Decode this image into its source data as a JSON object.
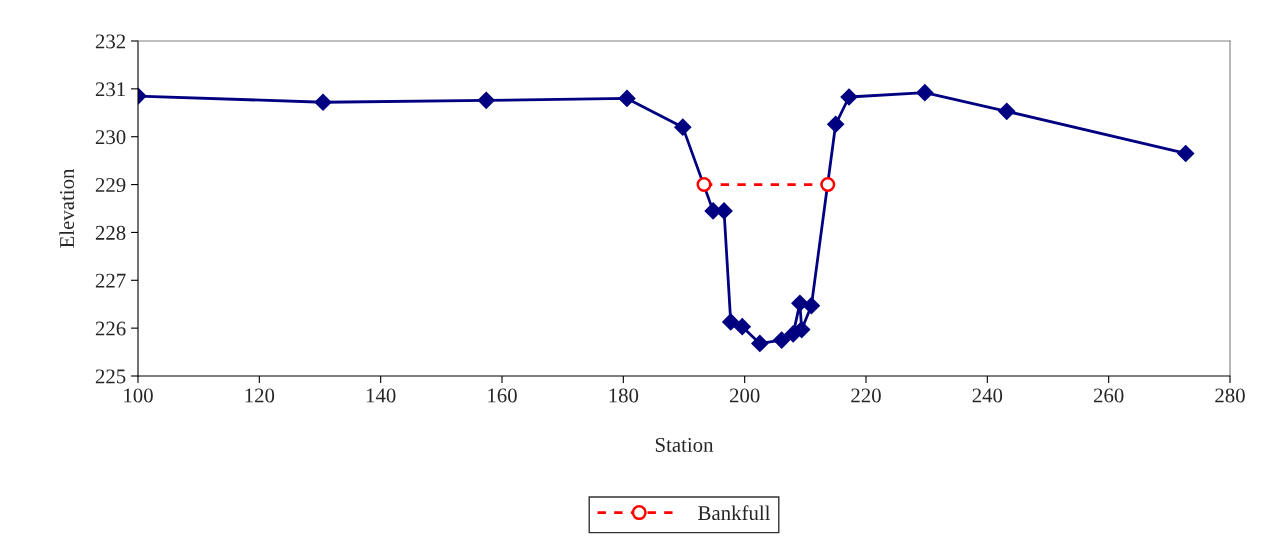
{
  "chart_data": {
    "type": "line",
    "xlabel": "Station",
    "ylabel": "Elevation",
    "xlim": [
      100,
      280
    ],
    "xticks": [
      100,
      120,
      140,
      160,
      180,
      200,
      220,
      240,
      260,
      280
    ],
    "ylim": [
      225,
      232
    ],
    "yticks": [
      225,
      226,
      227,
      228,
      229,
      230,
      231,
      232
    ],
    "grid": false,
    "legend": "bottom",
    "series": [
      {
        "color": "#000080",
        "marker": "diamond",
        "line_style": "solid",
        "x": [
          100,
          130.5,
          157.4,
          180.6,
          189.8,
          194.8,
          196.6,
          197.7,
          199.6,
          202.5,
          206.1,
          208.0,
          209.1,
          209.4,
          211.0,
          215.0,
          217.2,
          229.7,
          243.2,
          272.7
        ],
        "values": [
          230.85,
          230.72,
          230.76,
          230.8,
          230.2,
          228.45,
          228.45,
          226.13,
          226.03,
          225.68,
          225.75,
          225.88,
          226.52,
          225.97,
          226.47,
          230.26,
          230.83,
          230.92,
          230.53,
          229.65
        ]
      },
      {
        "name": "Bankfull",
        "color": "#ff0000",
        "marker": "circle",
        "line_style": "dashed",
        "x": [
          193.3,
          213.7
        ],
        "values": [
          229,
          229
        ]
      }
    ]
  }
}
